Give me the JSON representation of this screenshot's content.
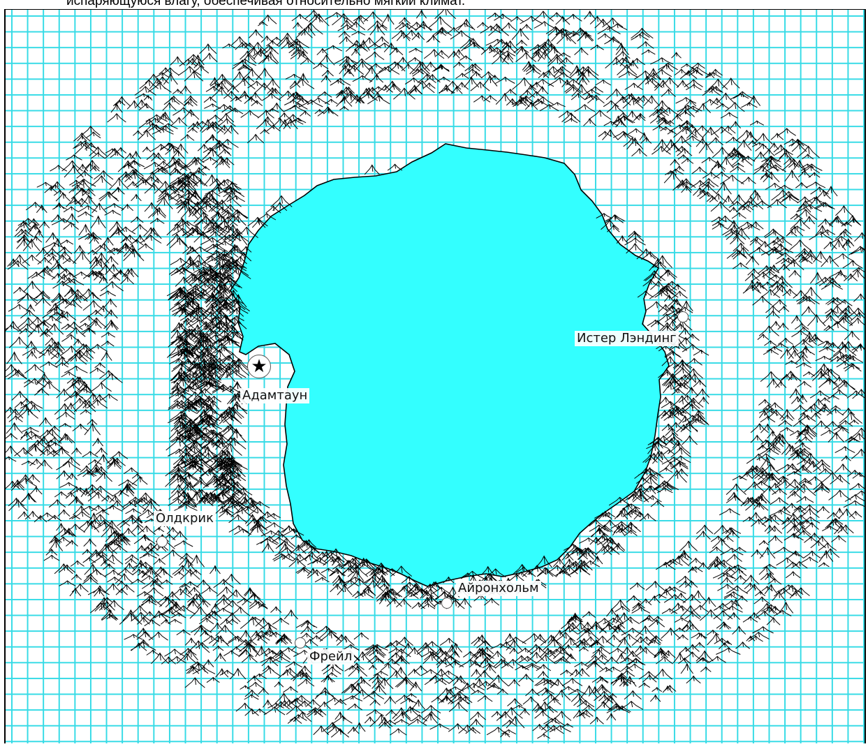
{
  "caption": "испаряющуюся влагу, обеспечивая относительно мягкий климат.",
  "map": {
    "lake_color": "#33ffff",
    "grid_color": "#36dbe6",
    "mountain_color": "#000000",
    "cities": [
      {
        "id": "adamtaun",
        "name": "Адамтаун",
        "type": "capital",
        "icon": "capital-star-icon"
      },
      {
        "id": "ister",
        "name": "Истер Лэндинг",
        "type": "town",
        "icon": "town-circle-icon"
      },
      {
        "id": "oldkrik",
        "name": "Олдкрик",
        "type": "town",
        "icon": "town-circle-icon"
      },
      {
        "id": "aironholm",
        "name": "Айронхольм",
        "type": "town",
        "icon": "town-circle-icon"
      },
      {
        "id": "freil",
        "name": "Фрейл",
        "type": "town",
        "icon": "town-circle-icon"
      }
    ]
  }
}
